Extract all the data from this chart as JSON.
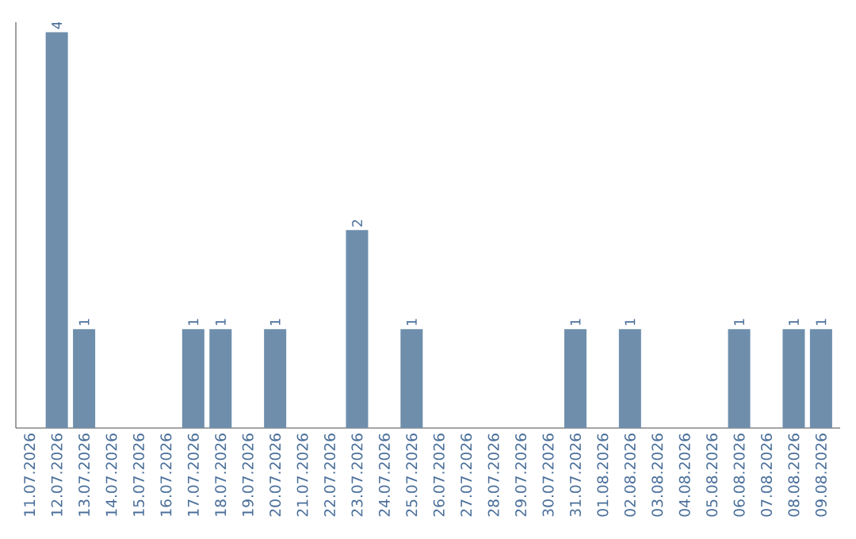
{
  "chart_data": {
    "type": "bar",
    "categories": [
      "11.07.2026",
      "12.07.2026",
      "13.07.2026",
      "14.07.2026",
      "15.07.2026",
      "16.07.2026",
      "17.07.2026",
      "18.07.2026",
      "19.07.2026",
      "20.07.2026",
      "21.07.2026",
      "22.07.2026",
      "23.07.2026",
      "24.07.2026",
      "25.07.2026",
      "26.07.2026",
      "27.07.2026",
      "28.07.2026",
      "29.07.2026",
      "30.07.2026",
      "31.07.2026",
      "01.08.2026",
      "02.08.2026",
      "03.08.2026",
      "04.08.2026",
      "05.08.2026",
      "06.08.2026",
      "07.08.2026",
      "08.08.2026",
      "09.08.2026"
    ],
    "values": [
      0,
      4,
      1,
      0,
      0,
      0,
      1,
      1,
      0,
      1,
      0,
      0,
      2,
      0,
      1,
      0,
      0,
      0,
      0,
      0,
      1,
      0,
      1,
      0,
      0,
      0,
      1,
      0,
      1,
      1
    ],
    "value_labels": [
      null,
      "4",
      "1",
      null,
      null,
      null,
      "1",
      "1",
      null,
      "1",
      null,
      null,
      "2",
      null,
      "1",
      null,
      null,
      null,
      null,
      null,
      "1",
      null,
      "1",
      null,
      null,
      null,
      "1",
      null,
      "1",
      "1"
    ],
    "color": "#6e8eac",
    "ylim": [
      0,
      4.1
    ],
    "tick_labels": "x"
  }
}
